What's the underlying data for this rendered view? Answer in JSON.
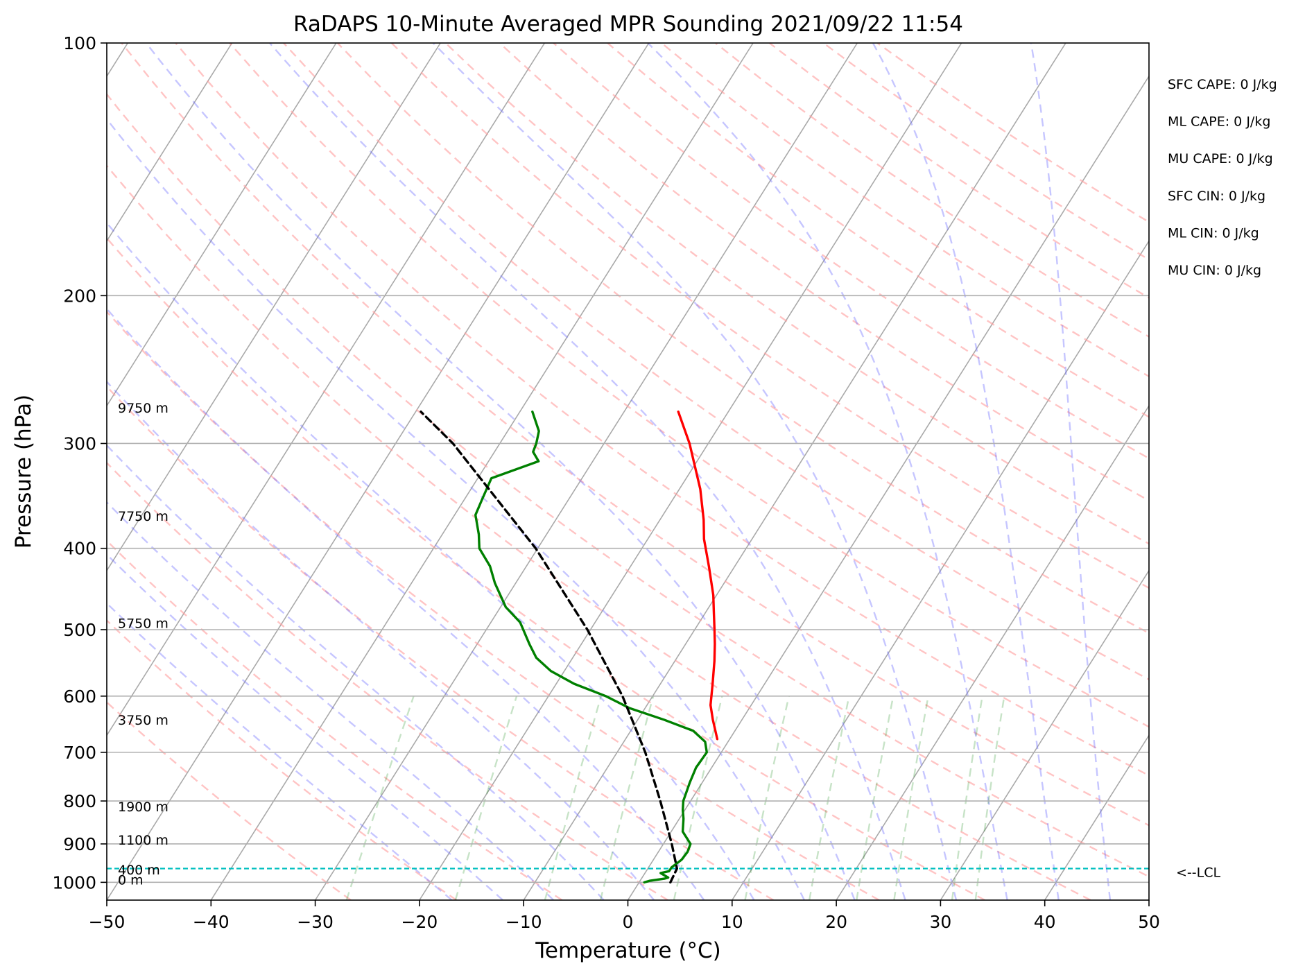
{
  "chart_data": {
    "type": "line",
    "title": "RaDAPS 10-Minute Averaged MPR Sounding 2021/09/22 11:54",
    "xlabel": "Temperature (°C)",
    "ylabel": "Pressure (hPa)",
    "xlim": [
      -50,
      50
    ],
    "ylim": [
      1050,
      100
    ],
    "y_scale": "log",
    "grid": true,
    "x_ticks": [
      "−50",
      "−40",
      "−30",
      "−20",
      "−10",
      "0",
      "10",
      "20",
      "30",
      "40",
      "50"
    ],
    "y_ticks": [
      "100",
      "200",
      "300",
      "400",
      "500",
      "600",
      "700",
      "800",
      "900",
      "1000"
    ],
    "height_labels": [
      {
        "p": 993,
        "text": "0 m"
      },
      {
        "p": 966,
        "text": "400 m"
      },
      {
        "p": 890,
        "text": "1100 m"
      },
      {
        "p": 812,
        "text": "1900 m"
      },
      {
        "p": 640,
        "text": "3750 m"
      },
      {
        "p": 491,
        "text": "5750 m"
      },
      {
        "p": 366,
        "text": "7750 m"
      },
      {
        "p": 272,
        "text": "9750 m"
      }
    ],
    "indices": [
      "SFC CAPE: 0 J/kg",
      "ML CAPE: 0 J/kg",
      "MU CAPE: 0 J/kg",
      "SFC CIN: 0 J/kg",
      "ML CIN: 0 J/kg",
      "MU CIN: 0 J/kg"
    ],
    "lcl": {
      "p": 963,
      "label": "<--LCL"
    },
    "series": [
      {
        "key": "temperature",
        "color": "#ff0000",
        "style": "solid",
        "points": [
          [
            275,
            -24.8
          ],
          [
            300,
            -21.8
          ],
          [
            340,
            -18.0
          ],
          [
            370,
            -15.8
          ],
          [
            390,
            -14.6
          ],
          [
            420,
            -12.5
          ],
          [
            455,
            -10.3
          ],
          [
            475,
            -9.3
          ],
          [
            500,
            -8.1
          ],
          [
            520,
            -7.2
          ],
          [
            545,
            -6.2
          ],
          [
            580,
            -5.0
          ],
          [
            615,
            -3.9
          ],
          [
            640,
            -2.8
          ],
          [
            675,
            -1.2
          ]
        ]
      },
      {
        "key": "dewpoint",
        "color": "#008000",
        "style": "solid",
        "points": [
          [
            275,
            -38.8
          ],
          [
            290,
            -37.0
          ],
          [
            300,
            -36.5
          ],
          [
            307,
            -36.3
          ],
          [
            315,
            -35.2
          ],
          [
            330,
            -38.7
          ],
          [
            350,
            -38.3
          ],
          [
            365,
            -38.0
          ],
          [
            385,
            -36.5
          ],
          [
            400,
            -35.6
          ],
          [
            420,
            -33.5
          ],
          [
            440,
            -32.0
          ],
          [
            470,
            -29.5
          ],
          [
            490,
            -27.2
          ],
          [
            520,
            -25.0
          ],
          [
            540,
            -23.5
          ],
          [
            560,
            -21.3
          ],
          [
            580,
            -18.3
          ],
          [
            600,
            -14.5
          ],
          [
            620,
            -11.5
          ],
          [
            640,
            -7.5
          ],
          [
            660,
            -4.0
          ],
          [
            680,
            -2.2
          ],
          [
            700,
            -1.4
          ],
          [
            730,
            -1.5
          ],
          [
            760,
            -1.2
          ],
          [
            800,
            -0.7
          ],
          [
            820,
            -0.2
          ],
          [
            840,
            0.4
          ],
          [
            870,
            1.1
          ],
          [
            900,
            2.6
          ],
          [
            920,
            2.8
          ],
          [
            940,
            2.7
          ],
          [
            960,
            2.2
          ],
          [
            970,
            2.2
          ],
          [
            975,
            1.5
          ],
          [
            987,
            2.5
          ],
          [
            990,
            2.2
          ],
          [
            996,
            0.9
          ],
          [
            1000,
            0.5
          ]
        ]
      },
      {
        "key": "parcel",
        "color": "#000000",
        "style": "dashed",
        "points": [
          [
            1000,
            3.0
          ],
          [
            963,
            2.8
          ],
          [
            900,
            0.8
          ],
          [
            800,
            -2.9
          ],
          [
            700,
            -7.3
          ],
          [
            600,
            -12.9
          ],
          [
            500,
            -20.3
          ],
          [
            400,
            -30.2
          ],
          [
            300,
            -44.5
          ],
          [
            275,
            -49.5
          ]
        ]
      }
    ]
  }
}
